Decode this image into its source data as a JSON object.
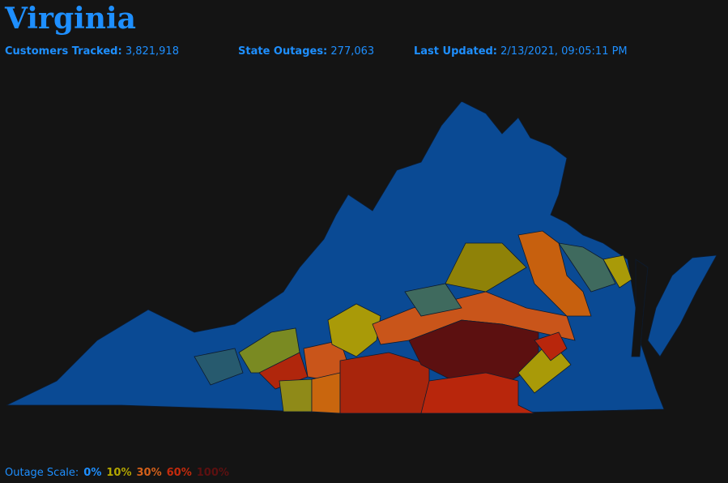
{
  "header": {
    "title": "Virginia",
    "stats": [
      {
        "label": "Customers Tracked:",
        "value": "3,821,918"
      },
      {
        "label": "State Outages:",
        "value": "277,063"
      },
      {
        "label": "Last Updated:",
        "value": "2/13/2021, 09:05:11 PM"
      }
    ]
  },
  "outage_scale": {
    "label": "Outage Scale:",
    "levels": [
      {
        "label": "0%",
        "color": "#1e8fff"
      },
      {
        "label": "10%",
        "color": "#b3a600"
      },
      {
        "label": "30%",
        "color": "#d4601a"
      },
      {
        "label": "60%",
        "color": "#c42a0c"
      },
      {
        "label": "100%",
        "color": "#5c1010"
      }
    ]
  }
}
